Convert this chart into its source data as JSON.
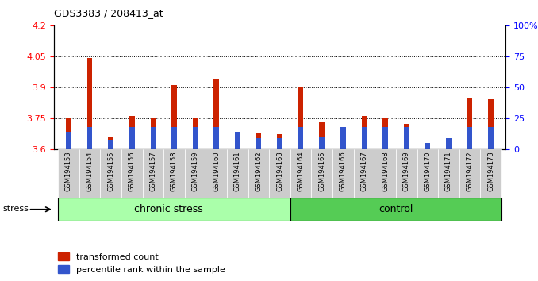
{
  "title": "GDS3383 / 208413_at",
  "samples": [
    "GSM194153",
    "GSM194154",
    "GSM194155",
    "GSM194156",
    "GSM194157",
    "GSM194158",
    "GSM194159",
    "GSM194160",
    "GSM194161",
    "GSM194162",
    "GSM194163",
    "GSM194164",
    "GSM194165",
    "GSM194166",
    "GSM194167",
    "GSM194168",
    "GSM194169",
    "GSM194170",
    "GSM194171",
    "GSM194172",
    "GSM194173"
  ],
  "red_values": [
    3.75,
    4.04,
    3.66,
    3.76,
    3.75,
    3.91,
    3.75,
    3.94,
    3.68,
    3.68,
    3.67,
    3.9,
    3.73,
    3.69,
    3.76,
    3.75,
    3.72,
    3.62,
    3.6,
    3.85,
    3.84
  ],
  "blue_percentile": [
    14,
    18,
    7,
    18,
    18,
    18,
    18,
    18,
    14,
    9,
    9,
    18,
    10,
    18,
    18,
    18,
    18,
    5,
    9,
    18,
    18
  ],
  "chronic_stress_count": 11,
  "control_count": 10,
  "ylim_left": [
    3.6,
    4.2
  ],
  "ylim_right": [
    0,
    100
  ],
  "yticks_left": [
    3.6,
    3.75,
    3.9,
    4.05,
    4.2
  ],
  "yticks_right": [
    0,
    25,
    50,
    75,
    100
  ],
  "ytick_labels_right": [
    "0",
    "25",
    "50",
    "75",
    "100%"
  ],
  "bar_color_red": "#cc2200",
  "bar_color_blue": "#3355cc",
  "chronic_stress_color": "#aaffaa",
  "control_color": "#55cc55",
  "bar_bottom": 3.6,
  "grid_lines": [
    3.75,
    3.9,
    4.05
  ],
  "stress_label": "stress",
  "chronic_stress_label": "chronic stress",
  "control_label": "control",
  "legend_red": "transformed count",
  "legend_blue": "percentile rank within the sample",
  "red_bar_width": 0.25,
  "blue_bar_width": 0.25
}
